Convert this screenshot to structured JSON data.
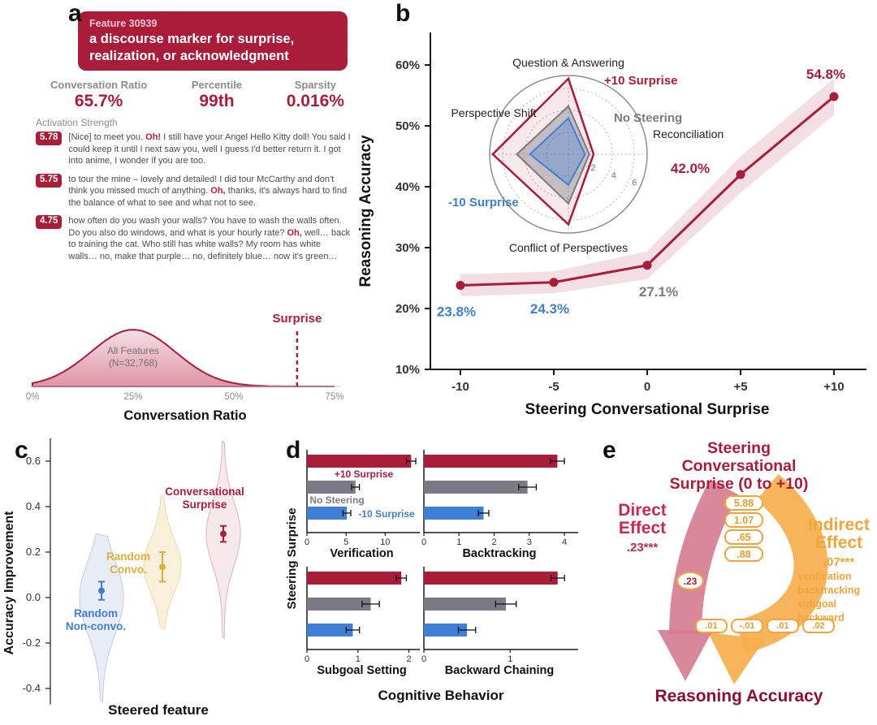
{
  "accent_colors": {
    "crimson": "#a91d3a",
    "blue": "#3f7fd4",
    "gray": "#7a7a85",
    "gold": "#dfae3c",
    "orange": "#f2a43c",
    "dark_maroon": "#8c1030",
    "rose": "#d4778e"
  },
  "panel_a": {
    "label": "a",
    "header": {
      "feature_id": "Feature 30939",
      "description": "a discourse marker for surprise, realization, or acknowledgment"
    },
    "stats": [
      {
        "label": "Conversation Ratio",
        "value": "65.7%"
      },
      {
        "label": "Percentile",
        "value": "99th"
      },
      {
        "label": "Sparsity",
        "value": "0.016%"
      }
    ],
    "activation_label": "Activation Strength",
    "examples": [
      {
        "score": "5.78",
        "pre": "[Nice] to meet you. ",
        "highlight": "Oh!",
        "post": " I still have your Angel Hello Kitty doll! You said I could keep it until I next saw you, well I guess I'd better return it. I got into anime, I wonder if you are too."
      },
      {
        "score": "5.75",
        "pre": "to tour the mine – lovely and detailed! I did tour McCarthy and don't think you missed much of anything. ",
        "highlight": "Oh,",
        "post": " thanks, it's always hard to find the balance of what to see and what not to see."
      },
      {
        "score": "4.75",
        "pre": "how often do you wash your walls? You have to wash the walls often. Do you also do windows, and what is your hourly rate? ",
        "highlight": "Oh,",
        "post": " well… back to training the cat. Who still has white walls? My room has white walls… no, make that purple… no, definitely blue… now it's green…"
      }
    ]
  },
  "panel_b": {
    "label": "b"
  },
  "panel_c": {
    "label": "c"
  },
  "panel_d": {
    "label": "d"
  },
  "panel_e": {
    "label": "e",
    "title": "Steering Conversational Surprise (0 to +10)",
    "direct_effect_label": "Direct Effect",
    "direct_effect_value": ".23***",
    "indirect_effect_label": "Indirect Effect",
    "indirect_effect_value": ".07***",
    "path_a_values": [
      "5.88",
      "1.07",
      ".65",
      ".88"
    ],
    "path_coefficient": ".23",
    "mediators": [
      "verification",
      "backtracking",
      "subgoal",
      "backward"
    ],
    "path_b_values": [
      ".01",
      "-.01",
      ".01",
      ".02"
    ],
    "outcome": "Reasoning Accuracy"
  },
  "chart_data": [
    {
      "id": "conversation-ratio-distribution",
      "type": "area",
      "xlabel": "Conversation Ratio",
      "x_ticks": [
        "0%",
        "25%",
        "50%",
        "75%"
      ],
      "x_tick_values": [
        0,
        25,
        50,
        75
      ],
      "annotation": [
        "All Features",
        "(N=32,768)"
      ],
      "marker": {
        "label": "Surprise",
        "x": 65.7
      },
      "curve": {
        "center": 25,
        "sigma": 10.5
      }
    },
    {
      "id": "steering-accuracy-line",
      "type": "line",
      "xlabel": "Steering Conversational Surprise",
      "ylabel": "Reasoning Accuracy",
      "x": [
        -10,
        -5,
        0,
        5,
        10
      ],
      "x_tick_labels": [
        "-10",
        "-5",
        "0",
        "+5",
        "+10"
      ],
      "values": [
        23.8,
        24.3,
        27.1,
        42.0,
        54.8
      ],
      "point_labels": [
        "23.8%",
        "24.3%",
        "27.1%",
        "42.0%",
        "54.8%"
      ],
      "point_label_colors": [
        "blue",
        "blue",
        "gray",
        "crimson",
        "crimson"
      ],
      "band_half_width": [
        1.8,
        1.8,
        2.3,
        3.0,
        3.0
      ],
      "y_ticks": [
        10,
        20,
        30,
        40,
        50,
        60
      ],
      "y_tick_labels": [
        "10%",
        "20%",
        "30%",
        "40%",
        "50%",
        "60%"
      ],
      "ylim": [
        10,
        65
      ]
    },
    {
      "id": "reasoning-radar",
      "type": "radar",
      "axes": [
        "Question & Answering",
        "Reconciliation",
        "Conflict of Perspectives",
        "Perspective Shift"
      ],
      "ticks": [
        2,
        4,
        6
      ],
      "series": [
        {
          "name": "+10 Surprise",
          "color": "crimson",
          "values": [
            6.9,
            2.3,
            6.4,
            6.9
          ]
        },
        {
          "name": "No Steering",
          "color": "gray",
          "values": [
            4.4,
            1.9,
            4.5,
            4.7
          ]
        },
        {
          "name": "-10 Surprise",
          "color": "blue",
          "values": [
            3.3,
            1.5,
            2.8,
            3.5
          ]
        }
      ]
    },
    {
      "id": "accuracy-improvement-violin",
      "type": "violin",
      "xlabel": "Steered feature",
      "ylabel": "Accuracy Improvement",
      "y_ticks": [
        0.6,
        0.4,
        0.2,
        0.0,
        -0.2,
        -0.4
      ],
      "groups": [
        {
          "name": "Random Non-convo.",
          "color": "blue",
          "mean": 0.03,
          "err": 0.04,
          "range": [
            -0.46,
            0.28
          ]
        },
        {
          "name": "Random Convo.",
          "color": "gold",
          "mean": 0.135,
          "err": 0.065,
          "range": [
            -0.14,
            0.45
          ]
        },
        {
          "name": "Conversational Surprise",
          "color": "crimson",
          "mean": 0.28,
          "err": 0.035,
          "range": [
            -0.18,
            0.69
          ]
        }
      ]
    },
    {
      "id": "cognitive-behavior-bars",
      "type": "bar",
      "xlabel": "Cognitive Behavior",
      "ylabel": "Steering Surprise",
      "series_labels": [
        "+10 Surprise",
        "No Steering",
        "-10 Surprise"
      ],
      "series_colors": [
        "crimson",
        "gray",
        "blue"
      ],
      "subplots": [
        {
          "title": "Verification",
          "x_ticks": [
            0,
            5,
            10
          ],
          "xmax": 14,
          "values": [
            13.3,
            6.2,
            5.1
          ],
          "errors": [
            0.6,
            0.5,
            0.5
          ]
        },
        {
          "title": "Backtracking",
          "x_ticks": [
            0,
            1,
            2,
            3,
            4
          ],
          "xmax": 4.3,
          "values": [
            3.8,
            2.95,
            1.7
          ],
          "errors": [
            0.2,
            0.25,
            0.15
          ]
        },
        {
          "title": "Subgoal Setting",
          "x_ticks": [
            0,
            1,
            2
          ],
          "xmax": 2.15,
          "values": [
            1.85,
            1.25,
            0.9
          ],
          "errors": [
            0.1,
            0.17,
            0.13
          ]
        },
        {
          "title": "Backward Chaining",
          "x_ticks": [
            0,
            1
          ],
          "xmax": 1.75,
          "values": [
            1.55,
            0.95,
            0.5
          ],
          "errors": [
            0.08,
            0.12,
            0.1
          ]
        }
      ]
    }
  ]
}
